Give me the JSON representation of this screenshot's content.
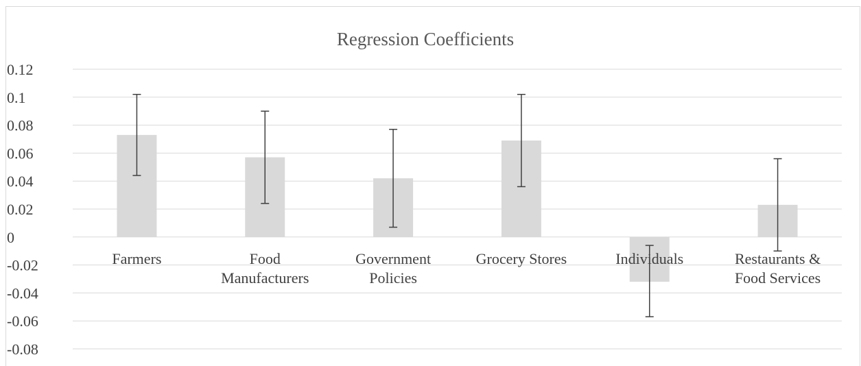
{
  "chart_data": {
    "type": "bar",
    "title": "Regression Coefficients",
    "xlabel": "",
    "ylabel": "",
    "ylim": [
      -0.08,
      0.12
    ],
    "yticks": [
      0.12,
      0.1,
      0.08,
      0.06,
      0.04,
      0.02,
      0,
      -0.02,
      -0.04,
      -0.06,
      -0.08
    ],
    "ytick_labels": [
      "0.12",
      "0.1",
      "0.08",
      "0.06",
      "0.04",
      "0.02",
      "0",
      "-0.02",
      "-0.04",
      "-0.06",
      "-0.08"
    ],
    "grid": true,
    "categories": [
      [
        "Farmers"
      ],
      [
        "Food",
        "Manufacturers"
      ],
      [
        "Government",
        "Policies"
      ],
      [
        "Grocery Stores"
      ],
      [
        "Individuals"
      ],
      [
        "Restaurants &",
        "Food Services"
      ]
    ],
    "values": [
      0.073,
      0.057,
      0.042,
      0.069,
      -0.032,
      0.023
    ],
    "error_low": [
      0.044,
      0.024,
      0.007,
      0.036,
      -0.057,
      -0.01
    ],
    "error_high": [
      0.102,
      0.09,
      0.077,
      0.102,
      -0.006,
      0.056
    ],
    "colors": {
      "bar": "#d9d9d9",
      "grid": "#d9d9d9",
      "error": "#404040",
      "axis": "#d9d9d9"
    }
  }
}
